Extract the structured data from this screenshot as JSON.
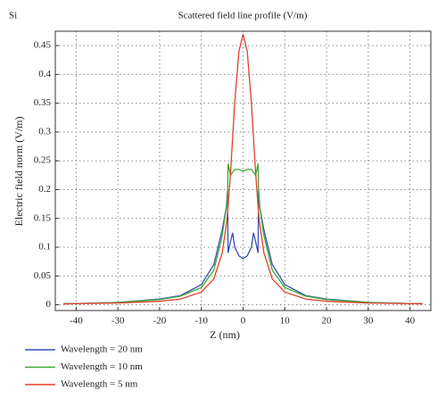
{
  "panel_label": "Si",
  "chart_data": {
    "type": "line",
    "title": "Scattered field line profile (V/m)",
    "x_label": "Z (nm)",
    "y_label": "Electric field norm (V/m)",
    "x": [
      -43,
      -40,
      -30,
      -20,
      -15,
      -10,
      -7,
      -5,
      -4,
      -3.7,
      -3.6,
      -3,
      -2.5,
      -2,
      -1,
      0,
      1,
      2,
      2.5,
      3,
      3.6,
      3.7,
      4,
      5,
      7,
      10,
      15,
      20,
      30,
      40,
      43
    ],
    "series": [
      {
        "name": "Wavelength = 20 nm",
        "color": "#3a4fb8",
        "values": [
          0.002,
          0.002,
          0.004,
          0.01,
          0.016,
          0.035,
          0.07,
          0.13,
          0.17,
          0.2,
          0.09,
          0.11,
          0.125,
          0.1,
          0.085,
          0.08,
          0.085,
          0.1,
          0.125,
          0.11,
          0.09,
          0.2,
          0.17,
          0.13,
          0.07,
          0.035,
          0.016,
          0.01,
          0.004,
          0.002,
          0.002
        ]
      },
      {
        "name": "Wavelength = 10 nm",
        "color": "#3aaa35",
        "values": [
          0.002,
          0.002,
          0.004,
          0.009,
          0.015,
          0.03,
          0.06,
          0.12,
          0.17,
          0.19,
          0.245,
          0.225,
          0.23,
          0.235,
          0.235,
          0.232,
          0.235,
          0.235,
          0.23,
          0.225,
          0.245,
          0.19,
          0.17,
          0.12,
          0.06,
          0.03,
          0.015,
          0.009,
          0.004,
          0.002,
          0.002
        ]
      },
      {
        "name": "Wavelength = 5 nm",
        "color": "#e0402a",
        "values": [
          0.0015,
          0.002,
          0.003,
          0.006,
          0.01,
          0.022,
          0.045,
          0.09,
          0.14,
          0.16,
          0.17,
          0.23,
          0.29,
          0.35,
          0.44,
          0.47,
          0.44,
          0.35,
          0.29,
          0.23,
          0.17,
          0.16,
          0.14,
          0.09,
          0.045,
          0.022,
          0.01,
          0.006,
          0.003,
          0.002,
          0.0015
        ]
      }
    ],
    "xlim": [
      -45,
      45
    ],
    "ylim": [
      -0.01,
      0.475
    ],
    "xticks": [
      -40,
      -30,
      -20,
      -10,
      0,
      10,
      20,
      30,
      40
    ],
    "yticks": [
      0,
      0.05,
      0.1,
      0.15,
      0.2,
      0.25,
      0.3,
      0.35,
      0.4,
      0.45
    ],
    "grid": true
  }
}
